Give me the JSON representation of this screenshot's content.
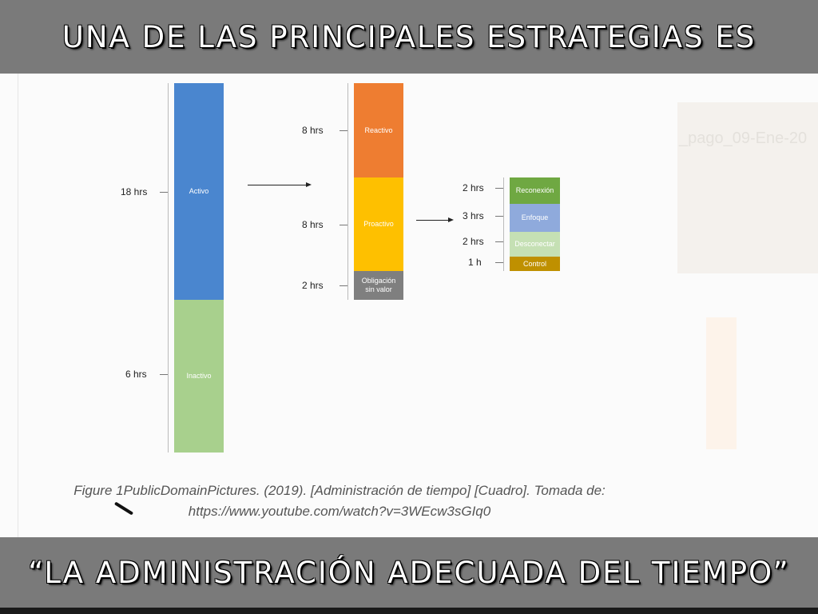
{
  "header": {
    "title": "UNA DE LAS PRINCIPALES ESTRATEGIAS ES"
  },
  "footer": {
    "title": "“LA ADMINISTRACIÓN ADECUADA DEL TIEMPO”"
  },
  "diagram": {
    "column1": [
      {
        "label": "Activo",
        "hours": "18 hrs",
        "color": "#4a86cf"
      },
      {
        "label": "Inactivo",
        "hours": "6 hrs",
        "color": "#a8d08d"
      }
    ],
    "column2": [
      {
        "label": "Reactivo",
        "hours": "8 hrs",
        "color": "#ee7d31"
      },
      {
        "label": "Proactivo",
        "hours": "8 hrs",
        "color": "#fec000"
      },
      {
        "label": "Obligación sin valor",
        "hours": "2 hrs",
        "color": "#7f7f7f"
      }
    ],
    "column3": [
      {
        "label": "Reconexión",
        "hours": "2 hrs",
        "color": "#6fa842"
      },
      {
        "label": "Enfoque",
        "hours": "3 hrs",
        "color": "#8faadc"
      },
      {
        "label": "Desconectar",
        "hours": "2 hrs",
        "color": "#c5e0b4"
      },
      {
        "label": "Control",
        "hours": "1 h",
        "color": "#bf9000"
      }
    ]
  },
  "caption": {
    "line1": "Figure 1PublicDomainPictures. (2019). [Administración de tiempo] [Cuadro]. Tomada de:",
    "line2": "https://www.youtube.com/watch?v=3WEcw3sGIq0"
  },
  "background_text": "_pago_09-Ene-20"
}
